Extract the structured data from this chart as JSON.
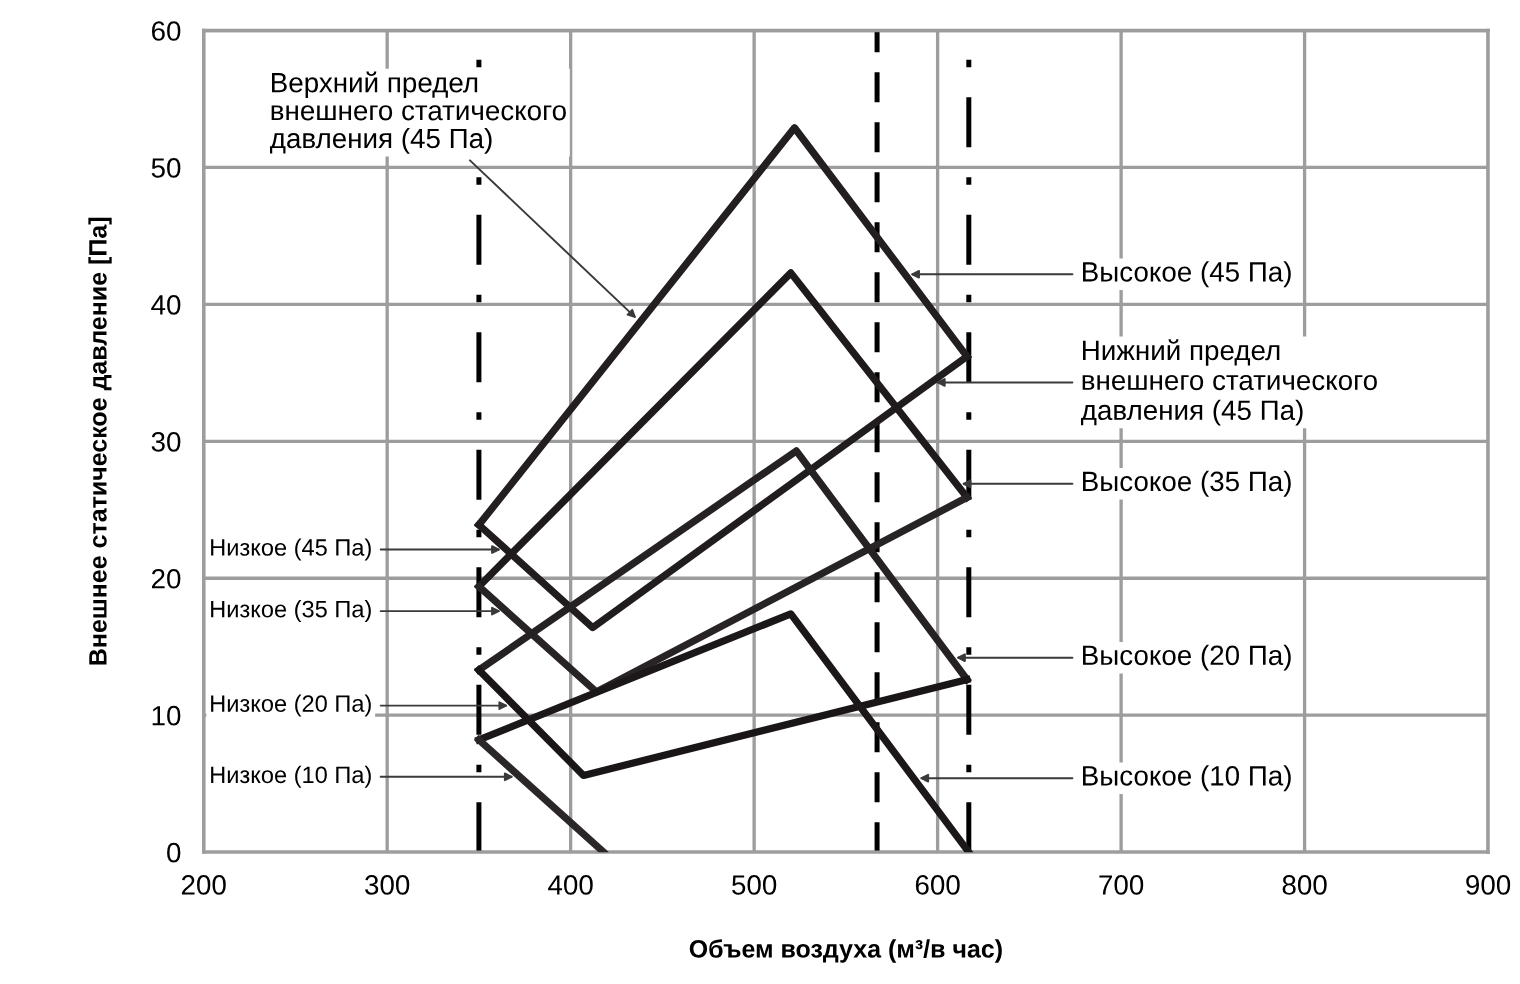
{
  "chart_data": {
    "type": "line",
    "xlabel": "Объем воздуха (м³/в час)",
    "ylabel": "Внешнее статическое давление [Па]",
    "xlim": [
      200,
      900
    ],
    "xticks": [
      200,
      300,
      400,
      500,
      600,
      700,
      800,
      900
    ],
    "ylim": [
      0,
      60
    ],
    "yticks": [
      0,
      10,
      20,
      30,
      40,
      50,
      60
    ],
    "grid": true,
    "marker": "none",
    "line_style": "solid",
    "series": [
      {
        "color": "#231f20",
        "x": [
          350,
          522,
          616
        ],
        "values": [
          23.9,
          52.9,
          36.2
        ]
      },
      {
        "color": "#211d1e",
        "x": [
          350,
          412,
          616
        ],
        "values": [
          23.9,
          16.4,
          36.2
        ]
      },
      {
        "color": "#1f1b1c",
        "x": [
          350,
          520,
          616
        ],
        "values": [
          19.4,
          42.3,
          25.9
        ]
      },
      {
        "color": "#282425",
        "x": [
          350,
          414,
          616
        ],
        "values": [
          19.4,
          11.7,
          25.9
        ]
      },
      {
        "color": "#262223",
        "x": [
          350,
          523,
          616
        ],
        "values": [
          13.3,
          29.3,
          12.6
        ]
      },
      {
        "color": "#1a1617",
        "x": [
          350,
          407,
          616
        ],
        "values": [
          13.3,
          5.6,
          12.6
        ]
      },
      {
        "color": "#1c1819",
        "x": [
          350,
          520,
          617
        ],
        "values": [
          8.2,
          17.4,
          0
        ]
      },
      {
        "color": "#2b2728",
        "x": [
          350,
          418
        ],
        "values": [
          8.2,
          0
        ]
      }
    ],
    "ref_lines": [
      {
        "axis": "x",
        "value": 350,
        "color": "#000000",
        "line_style": "dashdot"
      },
      {
        "axis": "x",
        "value": 567,
        "color": "#000000",
        "line_style": "dashed"
      },
      {
        "axis": "x",
        "value": 617,
        "color": "#000000",
        "line_style": "dashdot"
      }
    ],
    "annotations": [
      {
        "text": "Верхний предел\nвнешнего статического\nдавления (45 Па)",
        "x": 438,
        "y": 38.7
      },
      {
        "text": "Высокое (45 Па)",
        "x": 582,
        "y": 42.2
      },
      {
        "text": "Нижний предел\nвнешнего статического\nдавления (45 Па)",
        "x": 596,
        "y": 34.3
      },
      {
        "text": "Высокое (35 Па)",
        "x": 610,
        "y": 26.9
      },
      {
        "text": "Высокое (20 Па)",
        "x": 607,
        "y": 14.2
      },
      {
        "text": "Высокое (10 Па)",
        "x": 587,
        "y": 5.4
      },
      {
        "text": "Низкое (45 Па)",
        "x": 365,
        "y": 22.1
      },
      {
        "text": "Низкое (35 Па)",
        "x": 365,
        "y": 17.6
      },
      {
        "text": "Низкое (20 Па)",
        "x": 369,
        "y": 10.7
      },
      {
        "text": "Низкое (10 Па)",
        "x": 372,
        "y": 5.5
      }
    ]
  }
}
